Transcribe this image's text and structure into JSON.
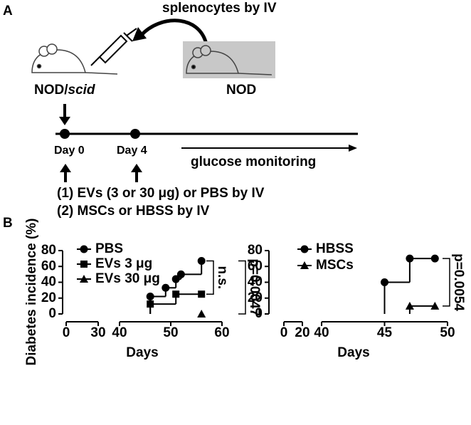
{
  "panel_a": {
    "label": "A",
    "injection": "splenocytes by IV",
    "recipient_prefix": "NOD/",
    "recipient_italic": "scid",
    "donor": "NOD",
    "day0": "Day 0",
    "day4": "Day 4",
    "monitoring": "glucose monitoring",
    "treatments": [
      "(1) EVs (3 or 30 μg) or PBS by IV",
      "(2) MSCs or HBSS by IV"
    ]
  },
  "panel_b_label": "B",
  "chart_data": [
    {
      "type": "step",
      "ylabel": "Diabetes incidence (%)",
      "xlabel": "Days",
      "ylim": [
        0,
        80
      ],
      "yticks": [
        0,
        20,
        40,
        60,
        80
      ],
      "x_segments": [
        {
          "xlim": [
            0,
            30
          ],
          "xticks": [
            0,
            30
          ]
        },
        {
          "xlim": [
            40,
            60
          ],
          "xticks": [
            40,
            50,
            60
          ]
        }
      ],
      "series": [
        {
          "name": "PBS",
          "marker": "circle",
          "color": "#000000",
          "x": [
            46,
            49,
            51,
            52,
            56
          ],
          "values": [
            22,
            33,
            44,
            50,
            67
          ]
        },
        {
          "name": "EVs 3 μg",
          "marker": "square",
          "color": "#000000",
          "x": [
            46,
            51,
            56
          ],
          "values": [
            12.5,
            25,
            25
          ]
        },
        {
          "name": "EVs 30 μg",
          "marker": "triangle",
          "color": "#000000",
          "x": [
            56
          ],
          "values": [
            0
          ]
        }
      ],
      "annotations": [
        {
          "text": "n.s.",
          "between": [
            "PBS",
            "EVs 3 μg"
          ]
        },
        {
          "text": "p=0.0047",
          "between": [
            "PBS",
            "EVs 30 μg"
          ]
        }
      ]
    },
    {
      "type": "step",
      "xlabel": "Days",
      "ylim": [
        0,
        80
      ],
      "yticks": [
        0,
        20,
        40,
        60,
        80
      ],
      "x_segments": [
        {
          "xlim": [
            0,
            20
          ],
          "xticks": [
            0,
            20
          ]
        },
        {
          "xlim": [
            40,
            50
          ],
          "xticks": [
            40,
            45,
            50
          ]
        }
      ],
      "series": [
        {
          "name": "HBSS",
          "marker": "circle",
          "color": "#000000",
          "x": [
            45,
            47,
            49
          ],
          "values": [
            40,
            70,
            70
          ]
        },
        {
          "name": "MSCs",
          "marker": "triangle",
          "color": "#000000",
          "x": [
            47,
            49
          ],
          "values": [
            10,
            10
          ]
        }
      ],
      "annotations": [
        {
          "text": "p=0.0054",
          "between": [
            "HBSS",
            "MSCs"
          ]
        }
      ]
    }
  ]
}
